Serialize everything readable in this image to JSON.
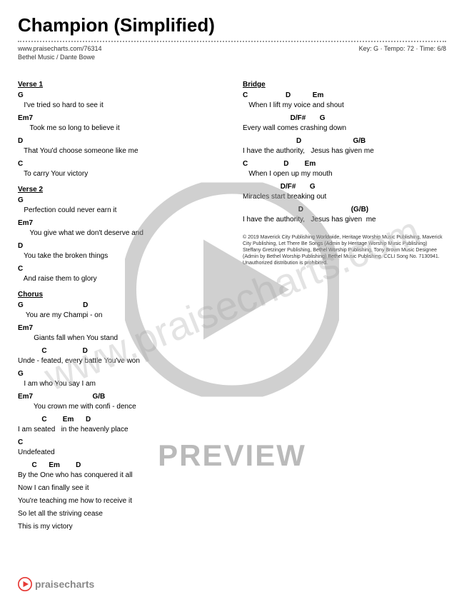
{
  "title": "Champion (Simplified)",
  "url": "www.praisecharts.com/76314",
  "meta": "Key: G · Tempo: 72 · Time: 6/8",
  "artist": "Bethel Music / Dante Bowe",
  "watermark": "www.praisecharts.com",
  "preview": "PREVIEW",
  "footer_brand": "praisecharts",
  "colors": {
    "accent": "#e63935",
    "gray_overlay": "rgba(150,150,150,0.45)"
  },
  "left": [
    {
      "title": "Verse 1",
      "lines": [
        {
          "c": "G",
          "l": "   I've tried so hard to see it"
        },
        {
          "c": "Em7",
          "l": "      Took me so long to believe it"
        },
        {
          "c": "D",
          "l": "   That You'd choose someone like me"
        },
        {
          "c": "C",
          "l": "   To carry Your victory"
        }
      ]
    },
    {
      "title": "Verse 2",
      "lines": [
        {
          "c": "G",
          "l": "   Perfection could never earn it"
        },
        {
          "c": "Em7",
          "l": "      You give what we don't deserve and"
        },
        {
          "c": "D",
          "l": "   You take the broken things"
        },
        {
          "c": "C",
          "l": "   And raise them to glory"
        }
      ]
    },
    {
      "title": "Chorus",
      "lines": [
        {
          "c": "G                              D",
          "l": "    You are my Champi - on"
        },
        {
          "c": "Em7",
          "l": "        Giants fall when You stand"
        },
        {
          "c": "            C                  D",
          "l": "Unde - feated, every battle You've won"
        },
        {
          "c": "G",
          "l": "   I am who You say I am"
        },
        {
          "c": "Em7                              G/B",
          "l": "        You crown me with confi - dence"
        },
        {
          "c": "            C        Em      D",
          "l": "I am seated   in the heavenly place"
        },
        {
          "c": "C",
          "l": "Undefeated"
        },
        {
          "c": "       C      Em        D",
          "l": "By the One who has conquered it all"
        }
      ]
    },
    {
      "title": "",
      "lines": [
        {
          "c": "",
          "l": "Now I can finally see it"
        },
        {
          "c": "",
          "l": "You're teaching me how to receive it"
        },
        {
          "c": "",
          "l": "So let all the striving cease"
        },
        {
          "c": "",
          "l": "This is my victory"
        }
      ]
    }
  ],
  "right": [
    {
      "title": "Bridge",
      "lines": [
        {
          "c": "C                   D           Em",
          "l": "   When I lift my voice and shout"
        },
        {
          "c": "                        D/F#       G",
          "l": "Every wall comes crashing down"
        },
        {
          "c": "                           D                          G/B",
          "l": "I have the authority,   Jesus has given me"
        },
        {
          "c": "C                  D        Em",
          "l": "   When I open up my mouth"
        },
        {
          "c": "                   D/F#       G",
          "l": "Miracles start breaking out"
        },
        {
          "c": "                            D                        (G/B)",
          "l": "I have the authority,   Jesus has given  me"
        }
      ]
    }
  ],
  "copyright": "© 2019 Maverick City Publishing Worldwide, Heritage Worship Music Publishing, Maverick City Publishing, Let There Be Songs (Admin by Heritage Worship Music Publishing) Steffany Gretzinger Publishing, Bethel Worship Publishing, Tony Brown Music Designee (Admin by Bethel Worship Publishing) Bethel Music Publishing. CCLI Song No. 7130941. Unauthorized distribution is prohibited."
}
